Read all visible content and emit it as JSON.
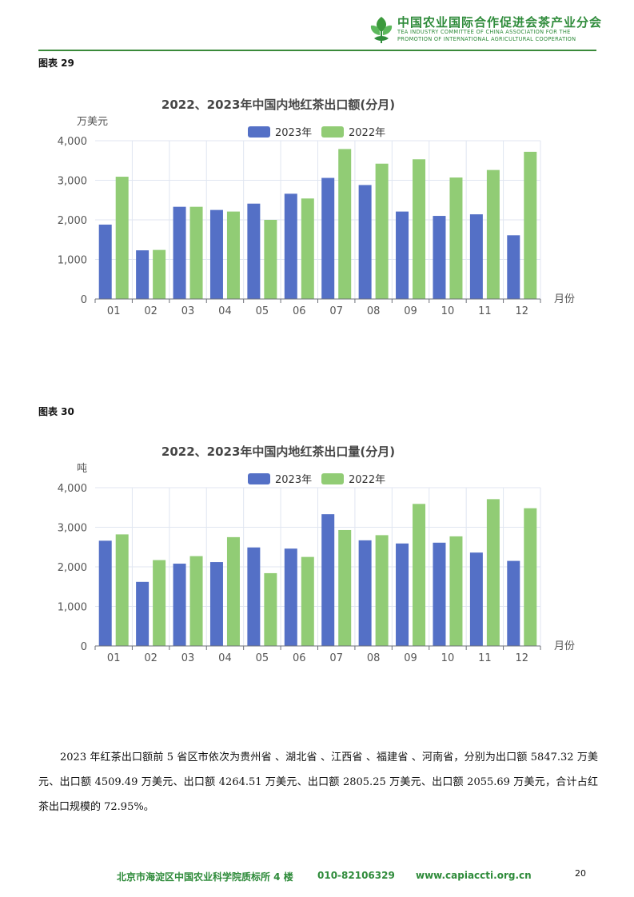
{
  "header": {
    "org_cn": "中国农业国际合作促进会茶产业分会",
    "org_en_line1": "TEA INDUSTRY COMMITTEE OF CHINA ASSOCIATION FOR THE",
    "org_en_line2": "PROMOTION OF INTERNATIONAL AGRICULTURAL COOPERATION"
  },
  "figures": [
    {
      "label": "图表 29"
    },
    {
      "label": "图表 30"
    }
  ],
  "chart_data": [
    {
      "type": "bar",
      "title": "2022、2023年中国内地红茶出口额(分月)",
      "ylabel": "万美元",
      "xlabel": "月份",
      "categories": [
        "01",
        "02",
        "03",
        "04",
        "05",
        "06",
        "07",
        "08",
        "09",
        "10",
        "11",
        "12"
      ],
      "series": [
        {
          "name": "2023年",
          "color": "#5470c6",
          "values": [
            1880,
            1230,
            2330,
            2250,
            2410,
            2660,
            3060,
            2880,
            2210,
            2100,
            2140,
            1610
          ]
        },
        {
          "name": "2022年",
          "color": "#91cc75",
          "values": [
            3090,
            1240,
            2330,
            2210,
            2000,
            2540,
            3790,
            3420,
            3530,
            3070,
            3260,
            3720
          ]
        }
      ],
      "ylim": [
        0,
        4000
      ],
      "yticks": [
        "0",
        "1,000",
        "2,000",
        "3,000",
        "4,000"
      ],
      "legend": "top-center",
      "grid": true
    },
    {
      "type": "bar",
      "title": "2022、2023年中国内地红茶出口量(分月)",
      "ylabel": "吨",
      "xlabel": "月份",
      "categories": [
        "01",
        "02",
        "03",
        "04",
        "05",
        "06",
        "07",
        "08",
        "09",
        "10",
        "11",
        "12"
      ],
      "series": [
        {
          "name": "2023年",
          "color": "#5470c6",
          "values": [
            2660,
            1620,
            2080,
            2120,
            2490,
            2460,
            3330,
            2670,
            2590,
            2610,
            2360,
            2150
          ]
        },
        {
          "name": "2022年",
          "color": "#91cc75",
          "values": [
            2820,
            2170,
            2270,
            2750,
            1840,
            2250,
            2930,
            2800,
            3590,
            2770,
            3710,
            3480
          ]
        }
      ],
      "ylim": [
        0,
        4000
      ],
      "yticks": [
        "0",
        "1,000",
        "2,000",
        "3,000",
        "4,000"
      ],
      "legend": "top-center",
      "grid": true
    }
  ],
  "paragraph": "2023 年红茶出口额前 5 省区市依次为贵州省 、湖北省 、江西省 、福建省 、河南省，分别为出口额 5847.32 万美元、出口额 4509.49 万美元、出口额 4264.51 万美元、出口额 2805.25 万美元、出口额 2055.69 万美元，合计占红茶出口规模的 72.95%。",
  "footer": {
    "address": "北京市海淀区中国农业科学院质标所 4 楼",
    "phone": "010-82106329",
    "website": "www.capiaccti.org.cn",
    "page": "20"
  }
}
